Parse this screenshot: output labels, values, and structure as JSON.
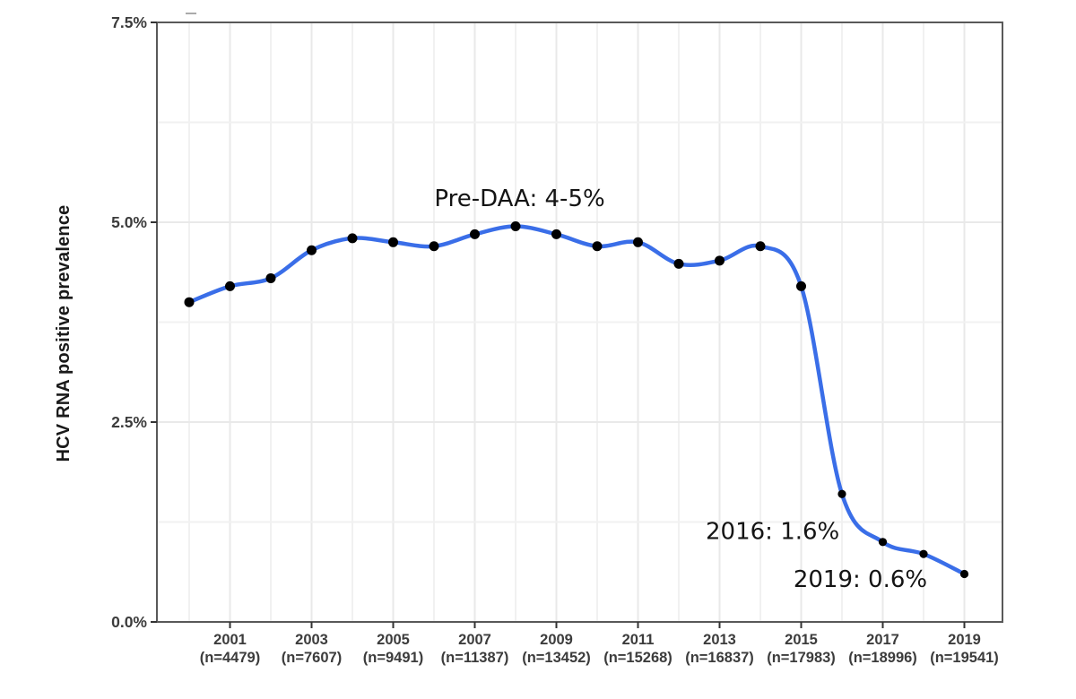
{
  "chart_data": {
    "type": "line",
    "title": "",
    "xlabel": "",
    "ylabel": "HCV RNA positive prevalence",
    "x": [
      2000,
      2001,
      2002,
      2003,
      2004,
      2005,
      2006,
      2007,
      2008,
      2009,
      2010,
      2011,
      2012,
      2013,
      2014,
      2015,
      2016,
      2017,
      2018,
      2019
    ],
    "values": [
      4.0,
      4.2,
      4.3,
      4.65,
      4.8,
      4.75,
      4.7,
      4.85,
      4.95,
      4.85,
      4.7,
      4.75,
      4.48,
      4.52,
      4.7,
      4.2,
      1.6,
      1.0,
      0.85,
      0.6
    ],
    "xlim": [
      1999.2,
      2019.95
    ],
    "ylim": [
      0,
      7.5
    ],
    "grid": true,
    "legend": "none",
    "x_ticks": [
      {
        "year": "2001",
        "n": "(n=4479)",
        "value": 2001
      },
      {
        "year": "2003",
        "n": "(n=7607)",
        "value": 2003
      },
      {
        "year": "2005",
        "n": "(n=9491)",
        "value": 2005
      },
      {
        "year": "2007",
        "n": "(n=11387)",
        "value": 2007
      },
      {
        "year": "2009",
        "n": "(n=13452)",
        "value": 2009
      },
      {
        "year": "2011",
        "n": "(n=15268)",
        "value": 2011
      },
      {
        "year": "2013",
        "n": "(n=16837)",
        "value": 2013
      },
      {
        "year": "2015",
        "n": "(n=17983)",
        "value": 2015
      },
      {
        "year": "2017",
        "n": "(n=18996)",
        "value": 2017
      },
      {
        "year": "2019",
        "n": "(n=19541)",
        "value": 2019
      }
    ],
    "y_ticks": [
      {
        "label": "0.0%",
        "value": 0
      },
      {
        "label": "2.5%",
        "value": 2.5
      },
      {
        "label": "5.0%",
        "value": 5.0
      },
      {
        "label": "7.5%",
        "value": 7.5
      }
    ],
    "y_minor_ticks": [
      1.25,
      3.75,
      6.25
    ],
    "annotations": [
      {
        "text": "Pre-DAA: 4-5%",
        "year": 2008.1,
        "pct": 5.3
      },
      {
        "text": "2016: 1.6%",
        "year": 2014.3,
        "pct": 1.14
      },
      {
        "text": "2019: 0.6%",
        "year": 2016.45,
        "pct": 0.54
      }
    ],
    "colors": {
      "line": "#3A6EE8",
      "point": "#000000",
      "grid_major": "#e9e9e9",
      "grid_minor": "#f1f1f1",
      "panel_border": "#595959",
      "tick_mark": "#333333",
      "tick_text": "#3c3c3c",
      "annotation_text": "#141414"
    }
  }
}
